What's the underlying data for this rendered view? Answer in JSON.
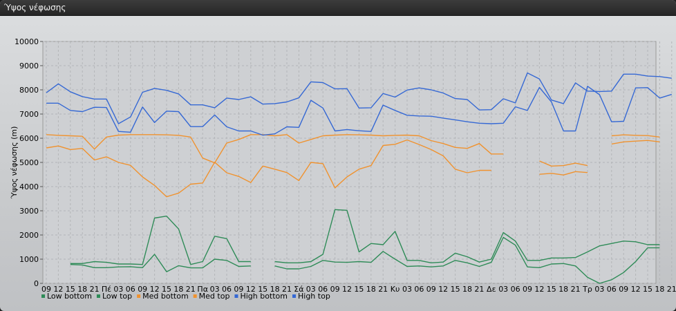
{
  "window": {
    "title": "Ύψος νέφωσης"
  },
  "chart_data": {
    "type": "line",
    "title": "",
    "ylabel": "Ύψος νέφωσης (m)",
    "xlabel": "",
    "ylim": [
      0,
      10000
    ],
    "yticks": [
      0,
      1000,
      2000,
      3000,
      4000,
      5000,
      6000,
      7000,
      8000,
      9000,
      10000
    ],
    "grid": true,
    "legend": "bottom-left",
    "categories": [
      "09",
      "12",
      "15",
      "18",
      "21",
      "Πέ",
      "03",
      "06",
      "09",
      "12",
      "15",
      "18",
      "21",
      "Πα",
      "03",
      "06",
      "09",
      "12",
      "15",
      "18",
      "21",
      "Σά",
      "03",
      "06",
      "09",
      "12",
      "15",
      "18",
      "21",
      "Κυ",
      "03",
      "06",
      "09",
      "12",
      "15",
      "18",
      "21",
      "Δε",
      "03",
      "06",
      "09",
      "12",
      "15",
      "18",
      "21",
      "Τρ",
      "03",
      "06",
      "09",
      "12",
      "15",
      "18",
      "21"
    ],
    "series": [
      {
        "name": "Low bottom",
        "color": "#2e8b57",
        "values": [
          null,
          null,
          780,
          760,
          650,
          650,
          680,
          690,
          650,
          1200,
          480,
          730,
          640,
          640,
          1000,
          950,
          700,
          720,
          null,
          720,
          600,
          600,
          700,
          950,
          880,
          870,
          900,
          870,
          1320,
          1000,
          700,
          720,
          680,
          720,
          950,
          850,
          700,
          870,
          1900,
          1580,
          680,
          650,
          800,
          820,
          720,
          250,
          0,
          150,
          450,
          900,
          1470,
          1470,
          null
        ]
      },
      {
        "name": "Low top",
        "color": "#2e8b57",
        "values": [
          null,
          null,
          820,
          820,
          900,
          870,
          800,
          800,
          780,
          2700,
          2780,
          2250,
          780,
          900,
          1950,
          1850,
          900,
          900,
          null,
          900,
          850,
          850,
          900,
          1200,
          3050,
          3020,
          1300,
          1650,
          1600,
          2150,
          950,
          950,
          850,
          880,
          1250,
          1100,
          880,
          1000,
          2100,
          1750,
          950,
          950,
          1050,
          1050,
          1070,
          1300,
          1550,
          1650,
          1750,
          1720,
          1600,
          1600,
          null
        ]
      },
      {
        "name": "Med bottom",
        "color": "#f0922e",
        "values": [
          5600,
          5680,
          5530,
          5580,
          5100,
          5230,
          5000,
          4880,
          4400,
          4050,
          3580,
          3730,
          4100,
          4150,
          5010,
          4570,
          4420,
          4170,
          4850,
          4720,
          4580,
          4250,
          5000,
          4950,
          3950,
          4400,
          4720,
          4870,
          5700,
          5750,
          5930,
          5740,
          5530,
          5270,
          4720,
          4570,
          4670,
          4670,
          null,
          null,
          null,
          4510,
          4550,
          4480,
          4620,
          4580,
          null,
          5760,
          5850,
          5880,
          5910,
          5850,
          null
        ]
      },
      {
        "name": "Med top",
        "color": "#f0922e",
        "values": [
          6150,
          6120,
          6100,
          6080,
          5550,
          6050,
          6130,
          6150,
          6150,
          6150,
          6140,
          6120,
          6050,
          5180,
          4980,
          5800,
          5950,
          6150,
          6150,
          6100,
          6150,
          5800,
          5950,
          6100,
          6130,
          6150,
          6140,
          6130,
          6100,
          6120,
          6130,
          6100,
          5900,
          5780,
          5620,
          5580,
          5780,
          5350,
          5350,
          null,
          null,
          5060,
          4850,
          4870,
          4970,
          4870,
          null,
          6100,
          6140,
          6120,
          6110,
          6050,
          null
        ]
      },
      {
        "name": "High bottom",
        "color": "#3568d4",
        "values": [
          7450,
          7450,
          7150,
          7100,
          7280,
          7270,
          6280,
          6250,
          7290,
          6650,
          7120,
          7100,
          6480,
          6480,
          6960,
          6470,
          6300,
          6300,
          6130,
          6180,
          6470,
          6450,
          7570,
          7250,
          6300,
          6360,
          6310,
          6280,
          7370,
          7150,
          6950,
          6920,
          6910,
          6830,
          6760,
          6680,
          6620,
          6600,
          6620,
          7300,
          7150,
          8100,
          7500,
          6300,
          6300,
          8150,
          7800,
          6680,
          6700,
          8080,
          8090,
          7660,
          7810
        ]
      },
      {
        "name": "High top",
        "color": "#3568d4",
        "values": [
          7880,
          8250,
          7920,
          7720,
          7620,
          7620,
          6600,
          6880,
          7900,
          8060,
          7980,
          7830,
          7380,
          7380,
          7260,
          7660,
          7600,
          7710,
          7410,
          7430,
          7500,
          7670,
          8330,
          8300,
          8040,
          8050,
          7250,
          7260,
          7850,
          7700,
          7990,
          8080,
          8000,
          7870,
          7640,
          7600,
          7170,
          7180,
          7630,
          7460,
          8700,
          8450,
          7580,
          7430,
          8290,
          7950,
          7930,
          7950,
          8650,
          8650,
          8570,
          8550,
          8480
        ]
      }
    ]
  }
}
